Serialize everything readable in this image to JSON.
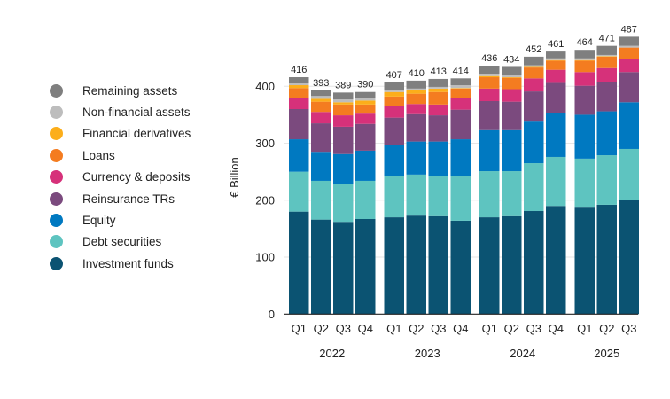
{
  "chart_data": {
    "type": "bar",
    "stacked": true,
    "ylabel": "€ Billion",
    "ylim": [
      0,
      450
    ],
    "yticks": [
      0,
      100,
      200,
      300,
      400
    ],
    "grid": true,
    "legend_position": "left",
    "groups": [
      {
        "year": "2022",
        "quarters": [
          "Q1",
          "Q2",
          "Q3",
          "Q4"
        ]
      },
      {
        "year": "2023",
        "quarters": [
          "Q1",
          "Q2",
          "Q3",
          "Q4"
        ]
      },
      {
        "year": "2024",
        "quarters": [
          "Q1",
          "Q2",
          "Q3",
          "Q4"
        ]
      },
      {
        "year": "2025",
        "quarters": [
          "Q1",
          "Q2",
          "Q3"
        ]
      }
    ],
    "totals": [
      416,
      393,
      389,
      390,
      407,
      410,
      413,
      414,
      436,
      434,
      452,
      461,
      464,
      471,
      487
    ],
    "series": [
      {
        "name": "Investment funds",
        "color": "#0b5372",
        "values": [
          180,
          166,
          162,
          167,
          170,
          173,
          172,
          164,
          170,
          172,
          181,
          190,
          187,
          192,
          201
        ]
      },
      {
        "name": "Debt securities",
        "color": "#5ec4c0",
        "values": [
          70,
          68,
          67,
          67,
          72,
          72,
          71,
          78,
          81,
          79,
          84,
          86,
          86,
          87,
          89
        ]
      },
      {
        "name": "Equity",
        "color": "#0079c1",
        "values": [
          57,
          51,
          52,
          53,
          55,
          58,
          60,
          65,
          72,
          72,
          73,
          77,
          77,
          77,
          82
        ]
      },
      {
        "name": "Reinsurance TRs",
        "color": "#7b4a7e",
        "values": [
          53,
          50,
          48,
          47,
          48,
          48,
          46,
          52,
          51,
          50,
          53,
          53,
          51,
          52,
          53
        ]
      },
      {
        "name": "Currency & deposits",
        "color": "#d6317a",
        "values": [
          20,
          20,
          20,
          18,
          20,
          18,
          19,
          21,
          22,
          22,
          23,
          23,
          24,
          24,
          23
        ]
      },
      {
        "name": "Loans",
        "color": "#f47c20",
        "values": [
          17,
          18,
          19,
          16,
          17,
          18,
          22,
          16,
          20,
          20,
          19,
          16,
          20,
          20,
          20
        ]
      },
      {
        "name": "Financial derivatives",
        "color": "#fcae1a",
        "values": [
          5,
          5,
          4,
          7,
          8,
          6,
          6,
          1,
          2,
          1,
          1,
          1,
          1,
          1,
          0
        ]
      },
      {
        "name": "Non-financial assets",
        "color": "#bdbdbd",
        "values": [
          3,
          5,
          5,
          4,
          3,
          3,
          3,
          5,
          3,
          3,
          3,
          3,
          3,
          2,
          3
        ]
      },
      {
        "name": "Remaining assets",
        "color": "#7f7f7f",
        "values": [
          11,
          10,
          12,
          11,
          14,
          14,
          14,
          12,
          15,
          15,
          15,
          12,
          15,
          16,
          16
        ]
      }
    ]
  }
}
